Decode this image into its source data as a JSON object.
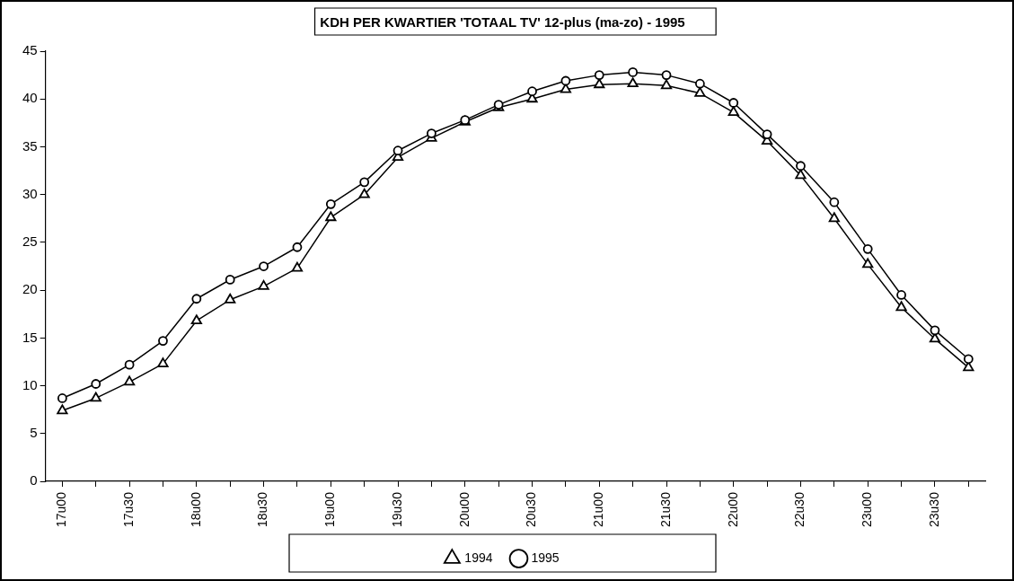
{
  "chart_data": {
    "type": "line",
    "title": "KDH PER KWARTIER 'TOTAAL TV' 12-plus (ma-zo) - 1995",
    "categories": [
      "17u00",
      null,
      "17u30",
      null,
      "18u00",
      null,
      "18u30",
      null,
      "19u00",
      null,
      "19u30",
      null,
      "20u00",
      null,
      "20u30",
      null,
      "21u00",
      null,
      "21u30",
      null,
      "22u00",
      null,
      "22u30",
      null,
      "23u00",
      null,
      "23u30",
      null
    ],
    "series": [
      {
        "name": "1994",
        "color": "#000000",
        "marker": "triangle",
        "values": [
          7.4,
          8.7,
          10.4,
          12.3,
          16.8,
          19.0,
          20.4,
          22.3,
          27.6,
          30.0,
          33.9,
          35.9,
          37.6,
          39.1,
          40.0,
          41.0,
          41.5,
          41.6,
          41.4,
          40.6,
          38.6,
          35.6,
          32.0,
          27.5,
          22.7,
          18.2,
          14.9,
          11.9
        ]
      },
      {
        "name": "1995",
        "color": "#000000",
        "marker": "circle",
        "values": [
          8.7,
          10.2,
          12.2,
          14.7,
          19.1,
          21.1,
          22.5,
          24.5,
          29.0,
          31.3,
          34.6,
          36.4,
          37.8,
          39.4,
          40.8,
          41.9,
          42.5,
          42.8,
          42.5,
          41.6,
          39.6,
          36.3,
          33.0,
          29.2,
          24.3,
          19.5,
          15.8,
          12.8
        ]
      }
    ],
    "ylim": [
      0,
      45
    ],
    "yticks": [
      0,
      5,
      10,
      15,
      20,
      25,
      30,
      35,
      40,
      45
    ],
    "grid": false,
    "legend": "bottom",
    "line_style": "solid"
  }
}
